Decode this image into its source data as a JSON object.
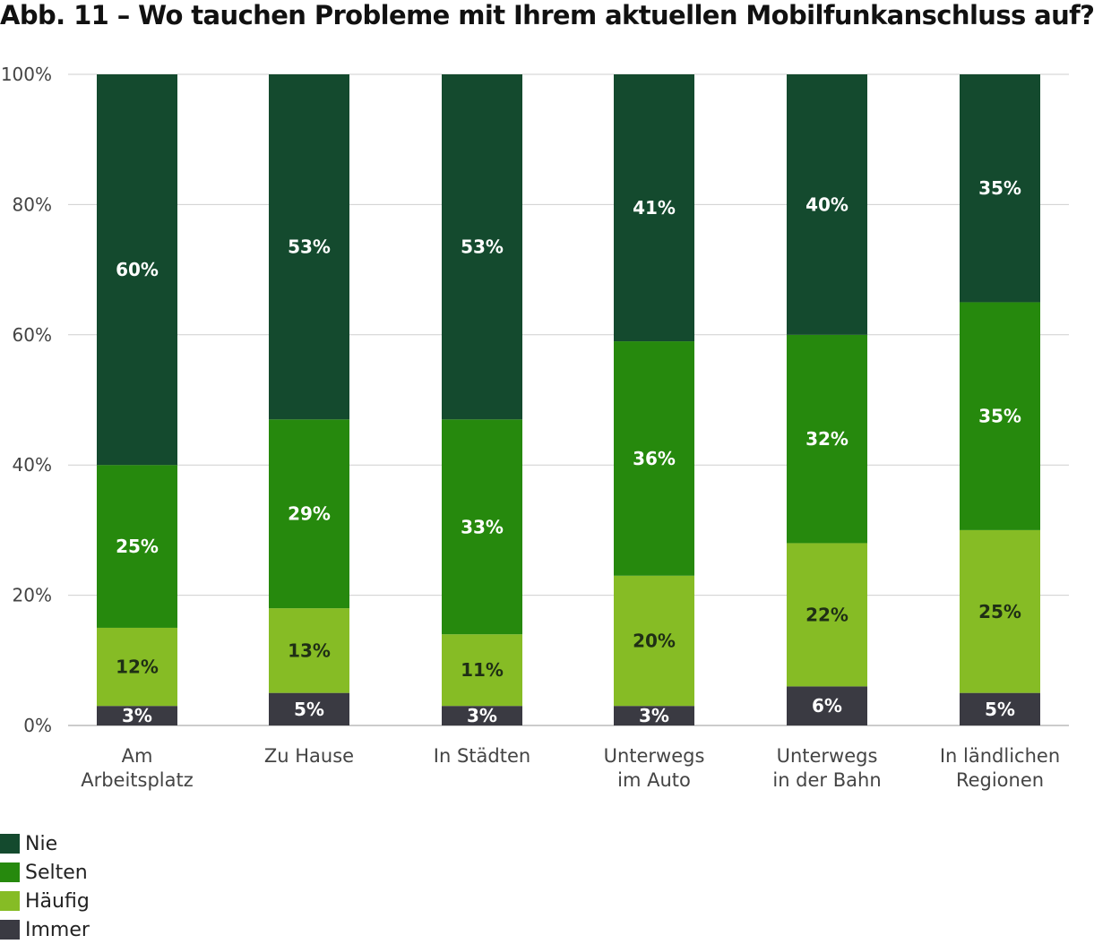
{
  "chart_data": {
    "type": "bar",
    "stacked": true,
    "title": "Abb. 11 – Wo tauchen Probleme mit Ihrem aktuellen Mobilfunkanschluss auf?",
    "xlabel": "",
    "ylabel": "",
    "ylim": [
      0,
      100
    ],
    "yticks": [
      "0%",
      "20%",
      "40%",
      "60%",
      "80%",
      "100%"
    ],
    "grid": true,
    "legend_position": "bottom-left",
    "categories": [
      [
        "Am",
        "Arbeitsplatz"
      ],
      [
        "Zu Hause"
      ],
      [
        "In Städten"
      ],
      [
        "Unterwegs",
        "im Auto"
      ],
      [
        "Unterwegs",
        "in der Bahn"
      ],
      [
        "In ländlichen",
        "Regionen"
      ]
    ],
    "series": [
      {
        "name": "Immer",
        "color": "#3a3a42",
        "label_color": "#ffffff",
        "values": [
          3,
          5,
          3,
          3,
          6,
          5
        ]
      },
      {
        "name": "Häufig",
        "color": "#86bc25",
        "label_color": "#1f2f15",
        "values": [
          12,
          13,
          11,
          20,
          22,
          25
        ]
      },
      {
        "name": "Selten",
        "color": "#26890d",
        "label_color": "#ffffff",
        "values": [
          25,
          29,
          33,
          36,
          32,
          35
        ]
      },
      {
        "name": "Nie",
        "color": "#144a2e",
        "label_color": "#ffffff",
        "values": [
          60,
          53,
          53,
          41,
          40,
          35
        ]
      }
    ],
    "legend_order": [
      "Nie",
      "Selten",
      "Häufig",
      "Immer"
    ]
  }
}
